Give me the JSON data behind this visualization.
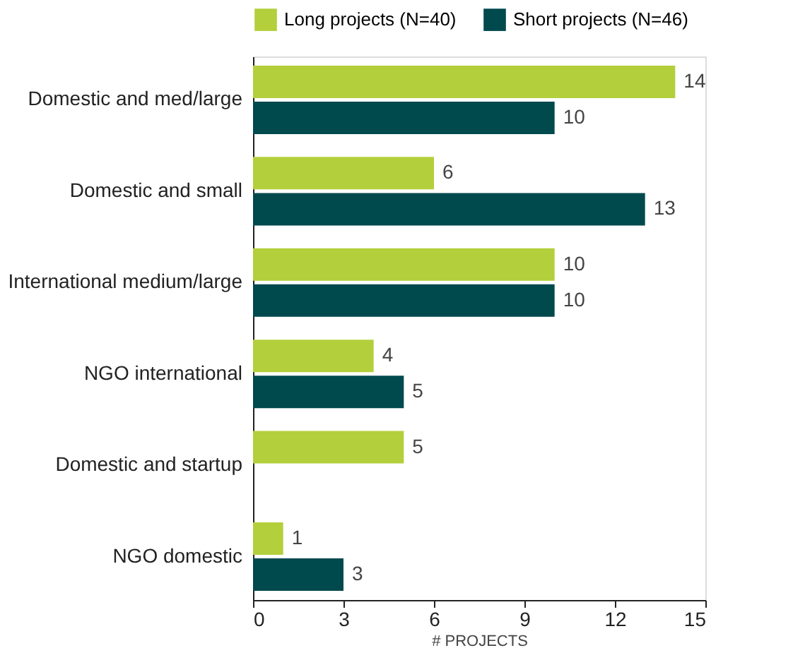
{
  "chart_data": {
    "type": "bar",
    "orientation": "horizontal",
    "categories": [
      "Domestic and med/large",
      "Domestic and small",
      "International medium/large",
      "NGO international",
      "Domestic and startup",
      "NGO domestic"
    ],
    "series": [
      {
        "name": "Long projects (N=40)",
        "color": "#b3cf3b",
        "values": [
          14,
          6,
          10,
          4,
          5,
          1
        ]
      },
      {
        "name": "Short projects (N=46)",
        "color": "#00494d",
        "values": [
          10,
          13,
          10,
          5,
          null,
          3
        ]
      }
    ],
    "xlim": [
      0,
      15
    ],
    "xticks": [
      0,
      3,
      6,
      9,
      12,
      15
    ],
    "xlabel": "# PROJECTS",
    "data_labels": true,
    "legend": "top",
    "grid": false
  }
}
